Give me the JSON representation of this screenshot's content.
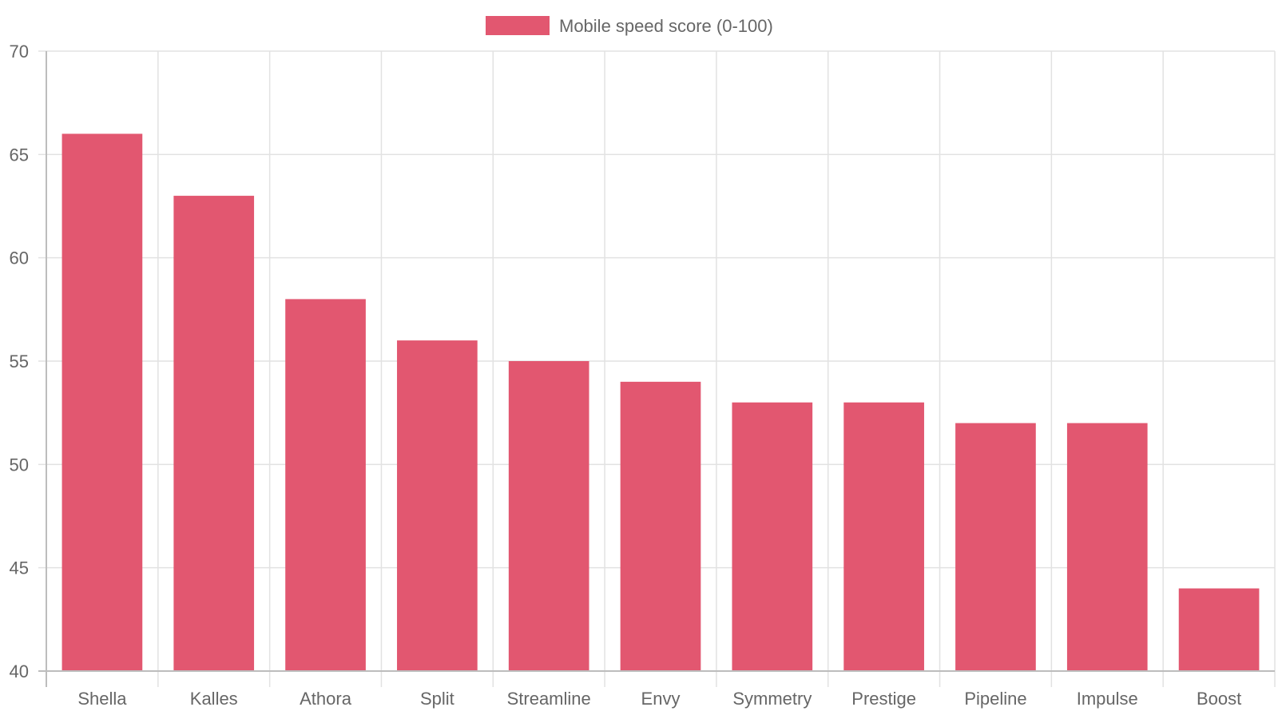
{
  "chart_data": {
    "type": "bar",
    "categories": [
      "Shella",
      "Kalles",
      "Athora",
      "Split",
      "Streamline",
      "Envy",
      "Symmetry",
      "Prestige",
      "Pipeline",
      "Impulse",
      "Boost"
    ],
    "series": [
      {
        "name": "Mobile speed score (0-100)",
        "values": [
          66,
          63,
          58,
          56,
          55,
          54,
          53,
          53,
          52,
          52,
          44
        ],
        "color": "#e25770"
      }
    ],
    "y_ticks": [
      "40",
      "45",
      "50",
      "55",
      "60",
      "65",
      "70"
    ],
    "ylim": [
      40,
      70
    ],
    "legend_position": "top-center",
    "grid": true
  }
}
